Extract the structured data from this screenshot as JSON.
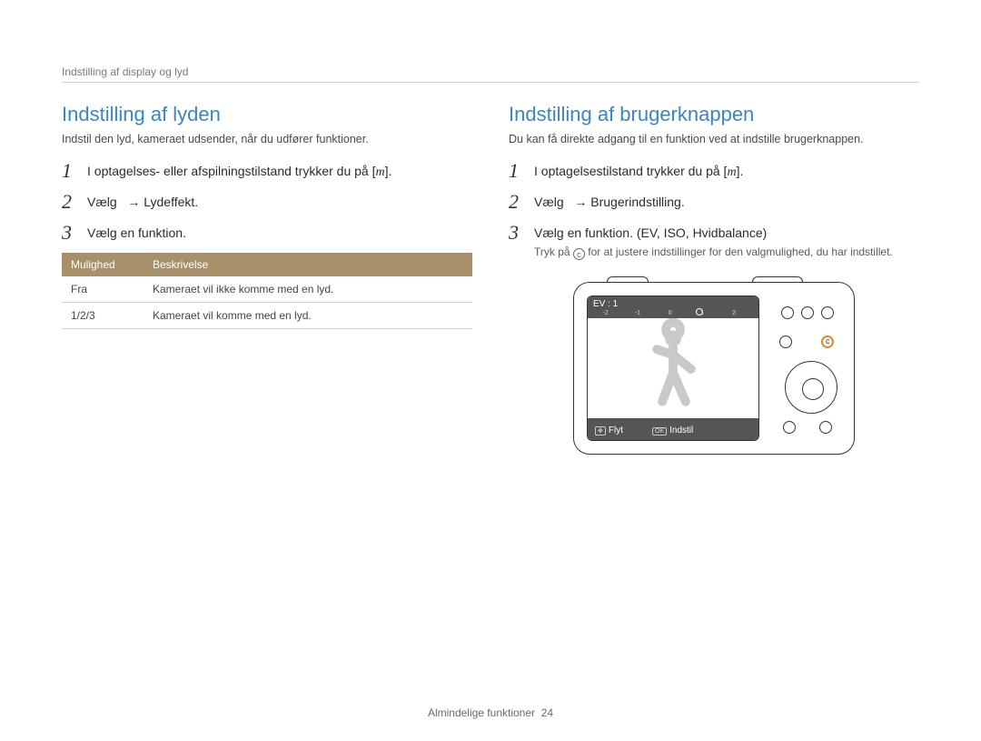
{
  "breadcrumb": "Indstilling af display og lyd",
  "left": {
    "title": "Indstilling af lyden",
    "intro": "Indstil den lyd, kameraet udsender, når du udfører funktioner.",
    "steps": [
      {
        "n": "1",
        "body_html": "I optagelses- eller afspilningstilstand trykker du på [<span class=\"m-icon\">m</span>]."
      },
      {
        "n": "2",
        "body_html": "Vælg &nbsp;&nbsp;→ Lydeffekt."
      },
      {
        "n": "3",
        "body_html": "Vælg en funktion."
      }
    ],
    "table": {
      "columns": [
        "Mulighed",
        "Beskrivelse"
      ],
      "rows": [
        [
          "Fra",
          "Kameraet vil ikke komme med en lyd."
        ],
        [
          "1/2/3",
          "Kameraet vil komme med en lyd."
        ]
      ],
      "header_bg": "#a8906b",
      "header_color": "#ffffff",
      "border_color": "#cfcfcf"
    }
  },
  "right": {
    "title": "Indstilling af brugerknappen",
    "intro": "Du kan få direkte adgang til en funktion ved at indstille brugerknappen.",
    "steps": [
      {
        "n": "1",
        "body_html": "I optagelsestilstand trykker du på [<span class=\"m-icon\">m</span>]."
      },
      {
        "n": "2",
        "body_html": "Vælg &nbsp;&nbsp;→ Brugerindstilling."
      },
      {
        "n": "3",
        "body_html": "Vælg en funktion. (EV, ISO, Hvidbalance)",
        "note_html": "Tryk på <span class=\"c-key\">c</span> for at justere indstillinger for den valgmulighed, du har indstillet."
      }
    ],
    "camera": {
      "ev_label": "EV : 1",
      "scale_ticks": [
        "-2",
        "-1",
        "0",
        "1",
        "2"
      ],
      "bottom_left": "Flyt",
      "bottom_right": "Indstil",
      "highlight_color": "#e08a2e"
    }
  },
  "footer": {
    "label": "Almindelige funktioner",
    "page": "24"
  },
  "colors": {
    "heading": "#3a85c7",
    "text": "#3a3a3a",
    "muted": "#7a7a7a",
    "rule": "#cfcfcf"
  }
}
